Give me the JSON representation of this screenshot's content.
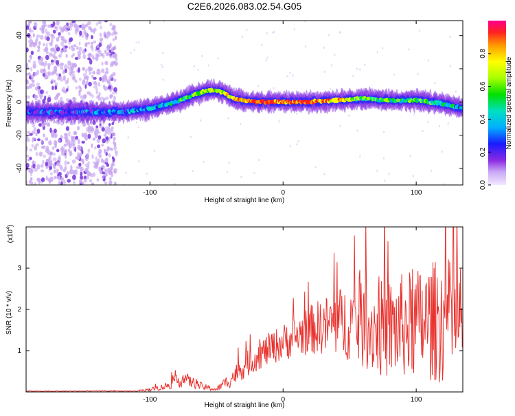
{
  "title": "C2E6.2026.083.02.54.G05",
  "colors": {
    "snr_line": "#e8322e",
    "ridge_low": "#6a00d8",
    "ridge_mid": "#00d0c8",
    "ridge_high": "#ff2a20",
    "noise": "#b890f0"
  },
  "chart_data": [
    {
      "type": "heatmap",
      "title": "C2E6.2026.083.02.54.G05",
      "xlabel": "Height of straight line (km)",
      "ylabel": "Frequency (Hz)",
      "xlim": [
        -193,
        135
      ],
      "ylim": [
        -50,
        49
      ],
      "xticks": [
        -100,
        0,
        100
      ],
      "xtick_labels": [
        "-100",
        "0",
        "100"
      ],
      "yticks": [
        -40,
        -20,
        0,
        20,
        40
      ],
      "ytick_labels": [
        "-40",
        "-20",
        "0",
        "20",
        "40"
      ],
      "ridge": {
        "description": "frequency of strongest spectral amplitude vs height",
        "x": [
          -193,
          -150,
          -120,
          -100,
          -80,
          -65,
          -55,
          -45,
          -38,
          -30,
          -20,
          0,
          20,
          40,
          60,
          80,
          100,
          120,
          135
        ],
        "freq": [
          -6,
          -6,
          -6,
          -4,
          0,
          5,
          7,
          6,
          2,
          1,
          0,
          0,
          0,
          1,
          2,
          1,
          1,
          -1,
          -4
        ],
        "amplitude": [
          0.3,
          0.3,
          0.35,
          0.45,
          0.5,
          0.6,
          0.75,
          0.7,
          0.8,
          0.9,
          0.95,
          0.95,
          0.9,
          0.85,
          0.6,
          0.55,
          0.6,
          0.5,
          0.4
        ]
      },
      "colorbar": {
        "label": "Normalized spectral amplitude",
        "range": [
          0,
          1
        ],
        "ticks": [
          0.0,
          0.2,
          0.4,
          0.6,
          0.8
        ],
        "tick_labels": [
          "0.0",
          "0.2",
          "0.4",
          "0.6",
          "0.8"
        ]
      }
    },
    {
      "type": "line",
      "xlabel": "Height of straight line (km)",
      "ylabel": "SNR (10 * v/v)",
      "y_scale_label": "(x10",
      "y_scale_exp": "4",
      "y_scale_close": ")",
      "xlim": [
        -193,
        135
      ],
      "ylim": [
        0,
        4
      ],
      "xticks": [
        -100,
        0,
        100
      ],
      "xtick_labels": [
        "-100",
        "0",
        "100"
      ],
      "yticks": [
        1,
        2,
        3
      ],
      "ytick_labels": [
        "1",
        "2",
        "3"
      ],
      "envelope_x": [
        -193,
        -110,
        -100,
        -90,
        -80,
        -75,
        -70,
        -60,
        -50,
        -40,
        -30,
        -20,
        -10,
        0,
        10,
        20,
        30,
        40,
        50,
        60,
        70,
        80,
        90,
        100,
        110,
        120,
        135
      ],
      "envelope_mean": [
        0.02,
        0.02,
        0.06,
        0.12,
        0.25,
        0.32,
        0.25,
        0.12,
        0.06,
        0.3,
        0.6,
        0.85,
        1.05,
        1.2,
        1.35,
        1.5,
        1.6,
        1.65,
        1.7,
        1.6,
        1.55,
        1.5,
        1.6,
        1.65,
        1.7,
        1.75,
        1.7
      ],
      "envelope_amp": [
        0.01,
        0.01,
        0.04,
        0.08,
        0.15,
        0.2,
        0.15,
        0.08,
        0.05,
        0.2,
        0.3,
        0.35,
        0.4,
        0.45,
        0.5,
        0.6,
        0.7,
        0.85,
        0.95,
        1.05,
        1.15,
        1.25,
        1.3,
        1.35,
        1.45,
        1.55,
        1.45
      ],
      "series_name": "SNR"
    }
  ]
}
